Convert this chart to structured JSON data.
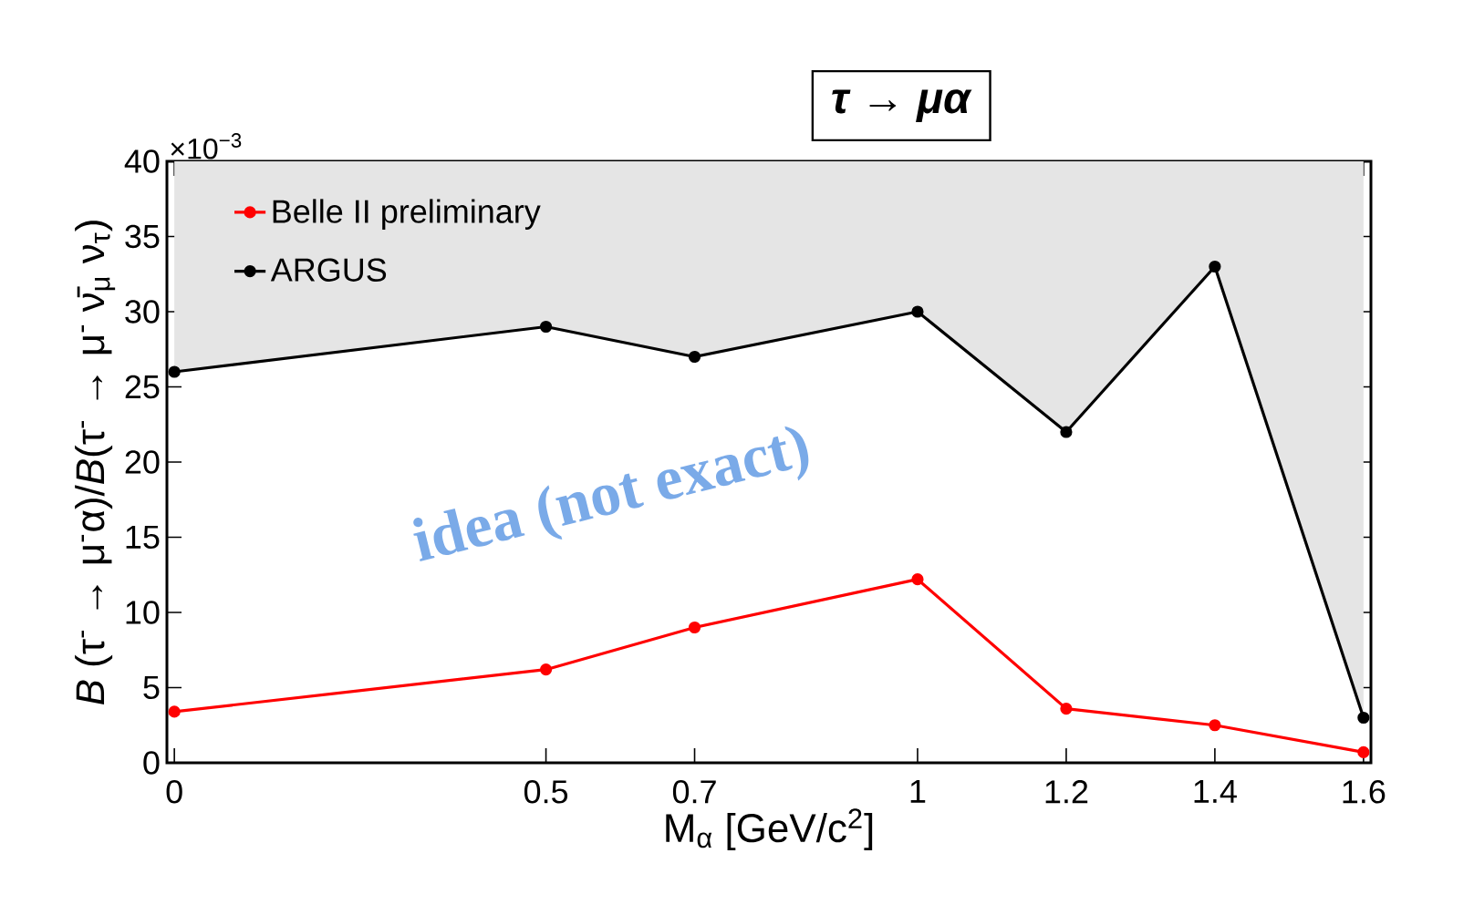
{
  "chart_data": {
    "type": "line",
    "title": "*τ → μα*",
    "xlabel": "M$_{α}$ [GeV/c$^{2}$]",
    "ylabel": "*B* (τ$^{-}$ → μ$^{-}$α)/*B*(τ$^{-}$ → μ$^{-}$ ν̄$_{μ}$ ν$_{τ}$)",
    "annotations": [
      "×10$^{−3}$",
      "idea (not exact)"
    ],
    "x": [
      0,
      0.5,
      0.7,
      1,
      1.2,
      1.4,
      1.6
    ],
    "series": [
      {
        "name": "Belle II preliminary",
        "color": "#ff0000",
        "values": [
          3.4,
          6.2,
          9,
          12.2,
          3.6,
          2.5,
          0.7
        ]
      },
      {
        "name": "ARGUS",
        "color": "#000000",
        "values": [
          26,
          29,
          27,
          30,
          22,
          33,
          3
        ],
        "lower": [
          26,
          29,
          27,
          30,
          22,
          33,
          3
        ],
        "upper": [
          40,
          40,
          40,
          40,
          40,
          40,
          40
        ]
      }
    ],
    "xlim": [
      -0.01,
      1.61
    ],
    "ylim": [
      0,
      40
    ],
    "xticks": [
      0,
      0.5,
      0.7,
      1,
      1.2,
      1.4,
      1.6
    ],
    "yticks": [
      0,
      5,
      10,
      15,
      20,
      25,
      30,
      35,
      40
    ],
    "grid": false,
    "legend": "top left",
    "marker": "circle",
    "line_style": "solid"
  }
}
